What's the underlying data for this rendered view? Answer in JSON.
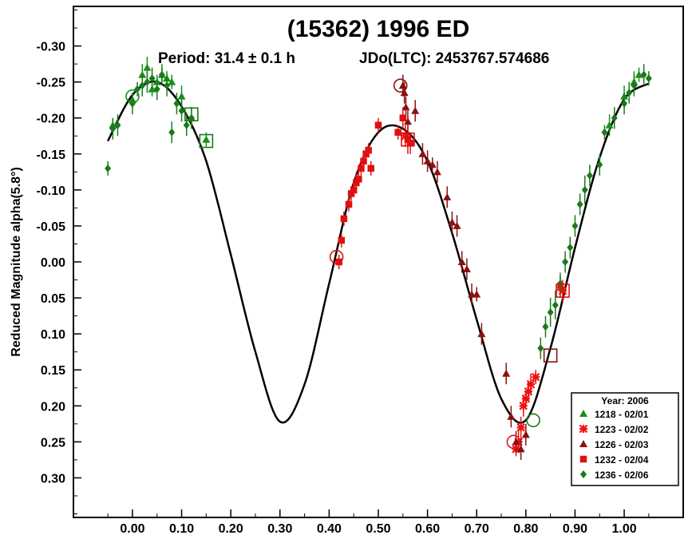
{
  "chart_data": {
    "type": "scatter",
    "title": "(15362) 1996 ED",
    "subtitle_period": "Period: 31.4 ± 0.1 h",
    "subtitle_epoch": "JDo(LTC): 2453767.574686",
    "ylabel": "Reduced Magnitude alpha(5.8°)",
    "xlabel": "",
    "xlim": [
      -0.12,
      1.12
    ],
    "ylim": [
      -0.355,
      0.355
    ],
    "y_inverted": true,
    "x_ticks": [
      "0.00",
      "0.10",
      "0.20",
      "0.30",
      "0.40",
      "0.50",
      "0.60",
      "0.70",
      "0.80",
      "0.90",
      "1.00"
    ],
    "x_tick_values": [
      0.0,
      0.1,
      0.2,
      0.3,
      0.4,
      0.5,
      0.6,
      0.7,
      0.8,
      0.9,
      1.0
    ],
    "y_ticks": [
      "-0.30",
      "-0.25",
      "-0.20",
      "-0.15",
      "-0.10",
      "-0.05",
      "0.00",
      "0.05",
      "0.10",
      "0.15",
      "0.20",
      "0.25",
      "0.30"
    ],
    "y_tick_values": [
      -0.3,
      -0.25,
      -0.2,
      -0.15,
      -0.1,
      -0.05,
      0.0,
      0.05,
      0.1,
      0.15,
      0.2,
      0.25,
      0.3
    ],
    "legend": {
      "title": "Year: 2006",
      "placement": "bottom-right",
      "entries": [
        "1218 - 02/01",
        "1223 - 02/02",
        "1226 - 02/03",
        "1232 - 02/04",
        "1236 - 02/06"
      ]
    },
    "fit_curve": {
      "name": "",
      "color": "#000000",
      "x": [
        -0.05,
        0.0,
        0.05,
        0.1,
        0.15,
        0.2,
        0.25,
        0.3,
        0.35,
        0.4,
        0.45,
        0.5,
        0.55,
        0.6,
        0.65,
        0.7,
        0.75,
        0.8,
        0.85,
        0.9,
        0.95,
        1.0,
        1.05
      ],
      "y": [
        -0.168,
        -0.232,
        -0.25,
        -0.216,
        -0.14,
        -0.01,
        0.125,
        0.222,
        0.17,
        0.03,
        -0.11,
        -0.18,
        -0.185,
        -0.14,
        -0.04,
        0.08,
        0.19,
        0.22,
        0.12,
        -0.02,
        -0.145,
        -0.226,
        -0.248
      ]
    },
    "series": [
      {
        "name": "1218 - 02/01",
        "color": "#1a8f1a",
        "marker": "triangle",
        "x": [
          -0.04,
          0.0,
          0.02,
          0.03,
          0.04,
          0.05,
          0.06,
          0.07,
          0.08,
          0.1,
          0.12,
          0.15,
          0.97,
          1.0,
          1.02,
          1.03
        ],
        "y": [
          -0.19,
          -0.225,
          -0.26,
          -0.27,
          -0.24,
          -0.25,
          -0.26,
          -0.255,
          -0.25,
          -0.23,
          -0.2,
          -0.17,
          -0.19,
          -0.23,
          -0.25,
          -0.26
        ],
        "err": [
          0.01,
          0.01,
          0.015,
          0.015,
          0.01,
          0.01,
          0.015,
          0.01,
          0.01,
          0.015,
          0.015,
          0.01,
          0.015,
          0.015,
          0.015,
          0.01
        ]
      },
      {
        "name": "1223 - 02/02",
        "color": "#ee1111",
        "marker": "asterisk",
        "x": [
          0.555,
          0.78,
          0.785,
          0.79,
          0.795,
          0.8,
          0.805,
          0.81,
          0.82,
          0.87,
          0.875
        ],
        "y": [
          -0.175,
          0.26,
          0.25,
          0.23,
          0.2,
          0.19,
          0.18,
          0.17,
          0.16,
          0.035,
          0.04
        ],
        "err": [
          0.015,
          0.01,
          0.015,
          0.015,
          0.015,
          0.01,
          0.015,
          0.015,
          0.01,
          0.015,
          0.015
        ]
      },
      {
        "name": "1226 - 02/03",
        "color": "#8b1010",
        "marker": "triangle",
        "x": [
          0.55,
          0.553,
          0.556,
          0.56,
          0.575,
          0.59,
          0.6,
          0.61,
          0.62,
          0.64,
          0.65,
          0.66,
          0.67,
          0.68,
          0.69,
          0.7,
          0.71,
          0.76,
          0.77,
          0.78,
          0.79,
          0.8
        ],
        "y": [
          -0.245,
          -0.235,
          -0.215,
          -0.195,
          -0.21,
          -0.15,
          -0.14,
          -0.135,
          -0.125,
          -0.09,
          -0.055,
          -0.05,
          0.0,
          0.01,
          0.045,
          0.045,
          0.1,
          0.155,
          0.215,
          0.25,
          0.26,
          0.24
        ],
        "err": [
          0.015,
          0.015,
          0.015,
          0.015,
          0.015,
          0.015,
          0.015,
          0.01,
          0.015,
          0.015,
          0.015,
          0.015,
          0.015,
          0.015,
          0.015,
          0.01,
          0.015,
          0.015,
          0.015,
          0.015,
          0.015,
          0.015
        ]
      },
      {
        "name": "1232 - 02/04",
        "color": "#e01010",
        "marker": "square",
        "x": [
          0.42,
          0.425,
          0.43,
          0.44,
          0.445,
          0.45,
          0.455,
          0.46,
          0.465,
          0.47,
          0.475,
          0.48,
          0.485,
          0.5,
          0.54,
          0.55,
          0.56,
          0.565
        ],
        "y": [
          0.0,
          -0.03,
          -0.06,
          -0.08,
          -0.095,
          -0.1,
          -0.11,
          -0.115,
          -0.13,
          -0.14,
          -0.15,
          -0.155,
          -0.13,
          -0.19,
          -0.18,
          -0.2,
          -0.17,
          -0.165
        ],
        "err": [
          0.01,
          0.01,
          0.01,
          0.01,
          0.01,
          0.01,
          0.015,
          0.01,
          0.01,
          0.015,
          0.01,
          0.01,
          0.01,
          0.01,
          0.01,
          0.015,
          0.02,
          0.015
        ]
      },
      {
        "name": "1236 - 02/06",
        "color": "#1a7a1a",
        "marker": "diamond",
        "x": [
          -0.05,
          -0.04,
          -0.03,
          0.0,
          0.01,
          0.02,
          0.03,
          0.04,
          0.05,
          0.06,
          0.07,
          0.08,
          0.09,
          0.1,
          0.11,
          0.12,
          0.83,
          0.84,
          0.85,
          0.86,
          0.87,
          0.88,
          0.89,
          0.9,
          0.91,
          0.92,
          0.93,
          0.95,
          0.96,
          0.98,
          1.0,
          1.01,
          1.02,
          1.04,
          1.05
        ],
        "y": [
          -0.13,
          -0.185,
          -0.19,
          -0.22,
          -0.24,
          -0.245,
          -0.25,
          -0.255,
          -0.24,
          -0.26,
          -0.245,
          -0.18,
          -0.22,
          -0.21,
          -0.19,
          -0.2,
          0.12,
          0.09,
          0.07,
          0.06,
          0.03,
          0.0,
          -0.02,
          -0.05,
          -0.08,
          -0.1,
          -0.12,
          -0.135,
          -0.18,
          -0.2,
          -0.22,
          -0.235,
          -0.245,
          -0.26,
          -0.255
        ],
        "err": [
          0.01,
          0.015,
          0.015,
          0.015,
          0.01,
          0.015,
          0.015,
          0.015,
          0.015,
          0.01,
          0.015,
          0.015,
          0.015,
          0.015,
          0.015,
          0.015,
          0.015,
          0.015,
          0.02,
          0.02,
          0.015,
          0.015,
          0.015,
          0.015,
          0.015,
          0.02,
          0.015,
          0.015,
          0.01,
          0.015,
          0.015,
          0.015,
          0.015,
          0.015,
          0.01
        ]
      }
    ],
    "open_markers": [
      {
        "series": "1218 - 02/01",
        "shape": "circle",
        "x": 0.0,
        "y": -0.23,
        "color": "#1a8f1a"
      },
      {
        "series": "1236 - 02/06",
        "shape": "square",
        "x": 0.12,
        "y": -0.205,
        "color": "#1a7a1a"
      },
      {
        "series": "1236 - 02/06",
        "shape": "square",
        "x": 0.15,
        "y": -0.168,
        "color": "#1a7a1a"
      },
      {
        "series": "1232 - 02/04",
        "shape": "circle",
        "x": 0.415,
        "y": -0.007,
        "color": "#e01010"
      },
      {
        "series": "1226 - 02/03",
        "shape": "circle",
        "x": 0.545,
        "y": -0.245,
        "color": "#8b1010"
      },
      {
        "series": "1232 - 02/04",
        "shape": "square",
        "x": 0.56,
        "y": -0.17,
        "color": "#e01010"
      },
      {
        "series": "1223 - 02/02",
        "shape": "circle",
        "x": 0.775,
        "y": 0.25,
        "color": "#ee1111"
      },
      {
        "series": "1236 - 02/06",
        "shape": "circle",
        "x": 0.815,
        "y": 0.22,
        "color": "#1a7a1a"
      },
      {
        "series": "1226 - 02/03",
        "shape": "square",
        "x": 0.85,
        "y": 0.13,
        "color": "#8b1010"
      },
      {
        "series": "1232 - 02/04",
        "shape": "square",
        "x": 0.875,
        "y": 0.04,
        "color": "#e01010"
      }
    ]
  }
}
